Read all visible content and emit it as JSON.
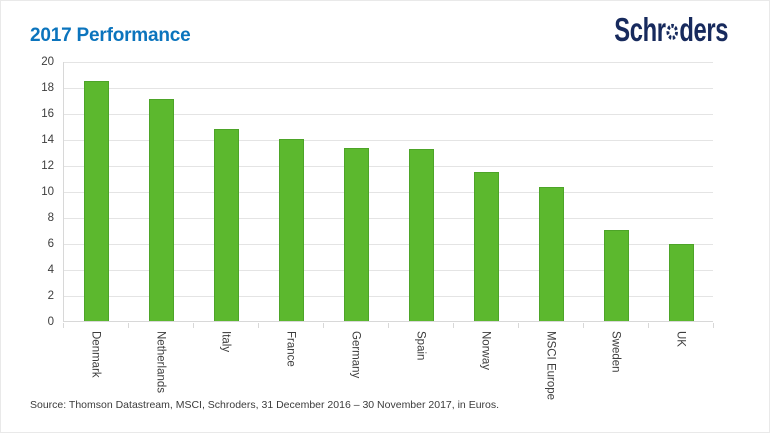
{
  "page": {
    "title": "2017 Performance",
    "logo_text": "Schroders",
    "source_note": "Source: Thomson Datastream, MSCI, Schroders, 31 December 2016 – 30 November 2017, in Euros.",
    "colors": {
      "title_blue": "#0b74bd",
      "logo_navy": "#172a5d",
      "bar_green": "#5cb82e",
      "gridline": "#e4e4e4",
      "axis_text": "#3d3d3d"
    }
  },
  "chart_data": {
    "type": "bar",
    "title": "2017 Performance",
    "categories": [
      "Denmark",
      "Netherlands",
      "Italy",
      "France",
      "Germany",
      "Spain",
      "Norway",
      "MSCI Europe",
      "Sweden",
      "UK"
    ],
    "values": [
      18.5,
      17.1,
      14.8,
      14.0,
      13.3,
      13.2,
      11.5,
      10.3,
      7.0,
      5.9
    ],
    "xlabel": "",
    "ylabel": "",
    "ylim": [
      0,
      20
    ],
    "ytick_step": 2,
    "grid": true,
    "legend": "none",
    "bar_color": "#5cb82e",
    "x_label_rotation_deg": 90
  }
}
